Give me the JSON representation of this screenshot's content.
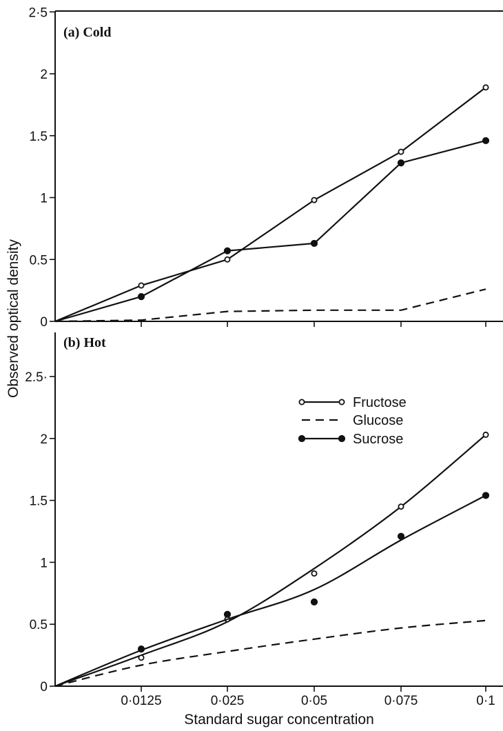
{
  "chart_data": {
    "type": "line",
    "xlabel": "Standard sugar concentration",
    "ylabel": "Observed optical density",
    "x_tick_labels": [
      "0·0125",
      "0·025",
      "0·05",
      "0·075",
      "0·1"
    ],
    "legend": {
      "placement": "center-right of panel (b)",
      "entries": [
        {
          "label": "Fructose",
          "marker": "open-circle",
          "line": "solid"
        },
        {
          "label": "Glucose",
          "marker": "none",
          "line": "dashed"
        },
        {
          "label": "Sucrose",
          "marker": "filled-circle",
          "line": "solid"
        }
      ]
    },
    "panels": [
      {
        "title": "(a) Cold",
        "ylim": [
          0,
          2.5
        ],
        "y_ticks": [
          {
            "value": 0,
            "label": "0"
          },
          {
            "value": 0.5,
            "label": "0.5"
          },
          {
            "value": 1,
            "label": "1"
          },
          {
            "value": 1.5,
            "label": "1.5"
          },
          {
            "value": 2,
            "label": "2"
          },
          {
            "value": 2.5,
            "label": "2·5"
          }
        ],
        "series": [
          {
            "name": "Fructose",
            "style": "open",
            "curve": "straight",
            "points": [
              [
                0,
                0
              ],
              [
                0.0125,
                0.29
              ],
              [
                0.025,
                0.5
              ],
              [
                0.05,
                0.98
              ],
              [
                0.075,
                1.37
              ],
              [
                0.1,
                1.89
              ]
            ]
          },
          {
            "name": "Sucrose",
            "style": "filled",
            "curve": "straight",
            "points": [
              [
                0,
                0
              ],
              [
                0.0125,
                0.2
              ],
              [
                0.025,
                0.57
              ],
              [
                0.05,
                0.63
              ],
              [
                0.075,
                1.28
              ],
              [
                0.1,
                1.46
              ]
            ]
          },
          {
            "name": "Glucose",
            "style": "dashed",
            "curve": "straight",
            "points": [
              [
                0,
                0
              ],
              [
                0.0125,
                0.01
              ],
              [
                0.025,
                0.08
              ],
              [
                0.05,
                0.09
              ],
              [
                0.075,
                0.09
              ],
              [
                0.1,
                0.26
              ]
            ]
          }
        ]
      },
      {
        "title": "(b) Hot",
        "ylim": [
          0,
          2.7
        ],
        "y_ticks": [
          {
            "value": 0,
            "label": "0"
          },
          {
            "value": 0.5,
            "label": "0.5"
          },
          {
            "value": 1,
            "label": "1"
          },
          {
            "value": 1.5,
            "label": "1.5"
          },
          {
            "value": 2,
            "label": "2"
          },
          {
            "value": 2.5,
            "label": "2.5·"
          }
        ],
        "series": [
          {
            "name": "Fructose",
            "style": "open",
            "curve": "smooth",
            "points": [
              [
                0,
                0
              ],
              [
                0.0125,
                0.23
              ],
              [
                0.025,
                0.54
              ],
              [
                0.05,
                0.91
              ],
              [
                0.075,
                1.45
              ],
              [
                0.1,
                2.03
              ]
            ],
            "fit": [
              [
                0,
                0
              ],
              [
                0.0125,
                0.25
              ],
              [
                0.025,
                0.52
              ],
              [
                0.05,
                0.95
              ],
              [
                0.075,
                1.45
              ],
              [
                0.1,
                2.03
              ]
            ]
          },
          {
            "name": "Sucrose",
            "style": "filled",
            "curve": "smooth",
            "points": [
              [
                0,
                0
              ],
              [
                0.0125,
                0.3
              ],
              [
                0.025,
                0.58
              ],
              [
                0.05,
                0.68
              ],
              [
                0.075,
                1.21
              ],
              [
                0.1,
                1.54
              ]
            ],
            "fit": [
              [
                0,
                0
              ],
              [
                0.0125,
                0.29
              ],
              [
                0.025,
                0.54
              ],
              [
                0.05,
                0.78
              ],
              [
                0.075,
                1.18
              ],
              [
                0.1,
                1.54
              ]
            ]
          },
          {
            "name": "Glucose",
            "style": "dashed",
            "curve": "smooth",
            "points": [
              [
                0,
                0
              ],
              [
                0.0125,
                0.17
              ],
              [
                0.025,
                0.28
              ],
              [
                0.05,
                0.38
              ],
              [
                0.075,
                0.47
              ],
              [
                0.1,
                0.53
              ]
            ],
            "fit": [
              [
                0,
                0
              ],
              [
                0.0125,
                0.17
              ],
              [
                0.025,
                0.28
              ],
              [
                0.05,
                0.38
              ],
              [
                0.075,
                0.47
              ],
              [
                0.1,
                0.53
              ]
            ]
          }
        ]
      }
    ]
  }
}
